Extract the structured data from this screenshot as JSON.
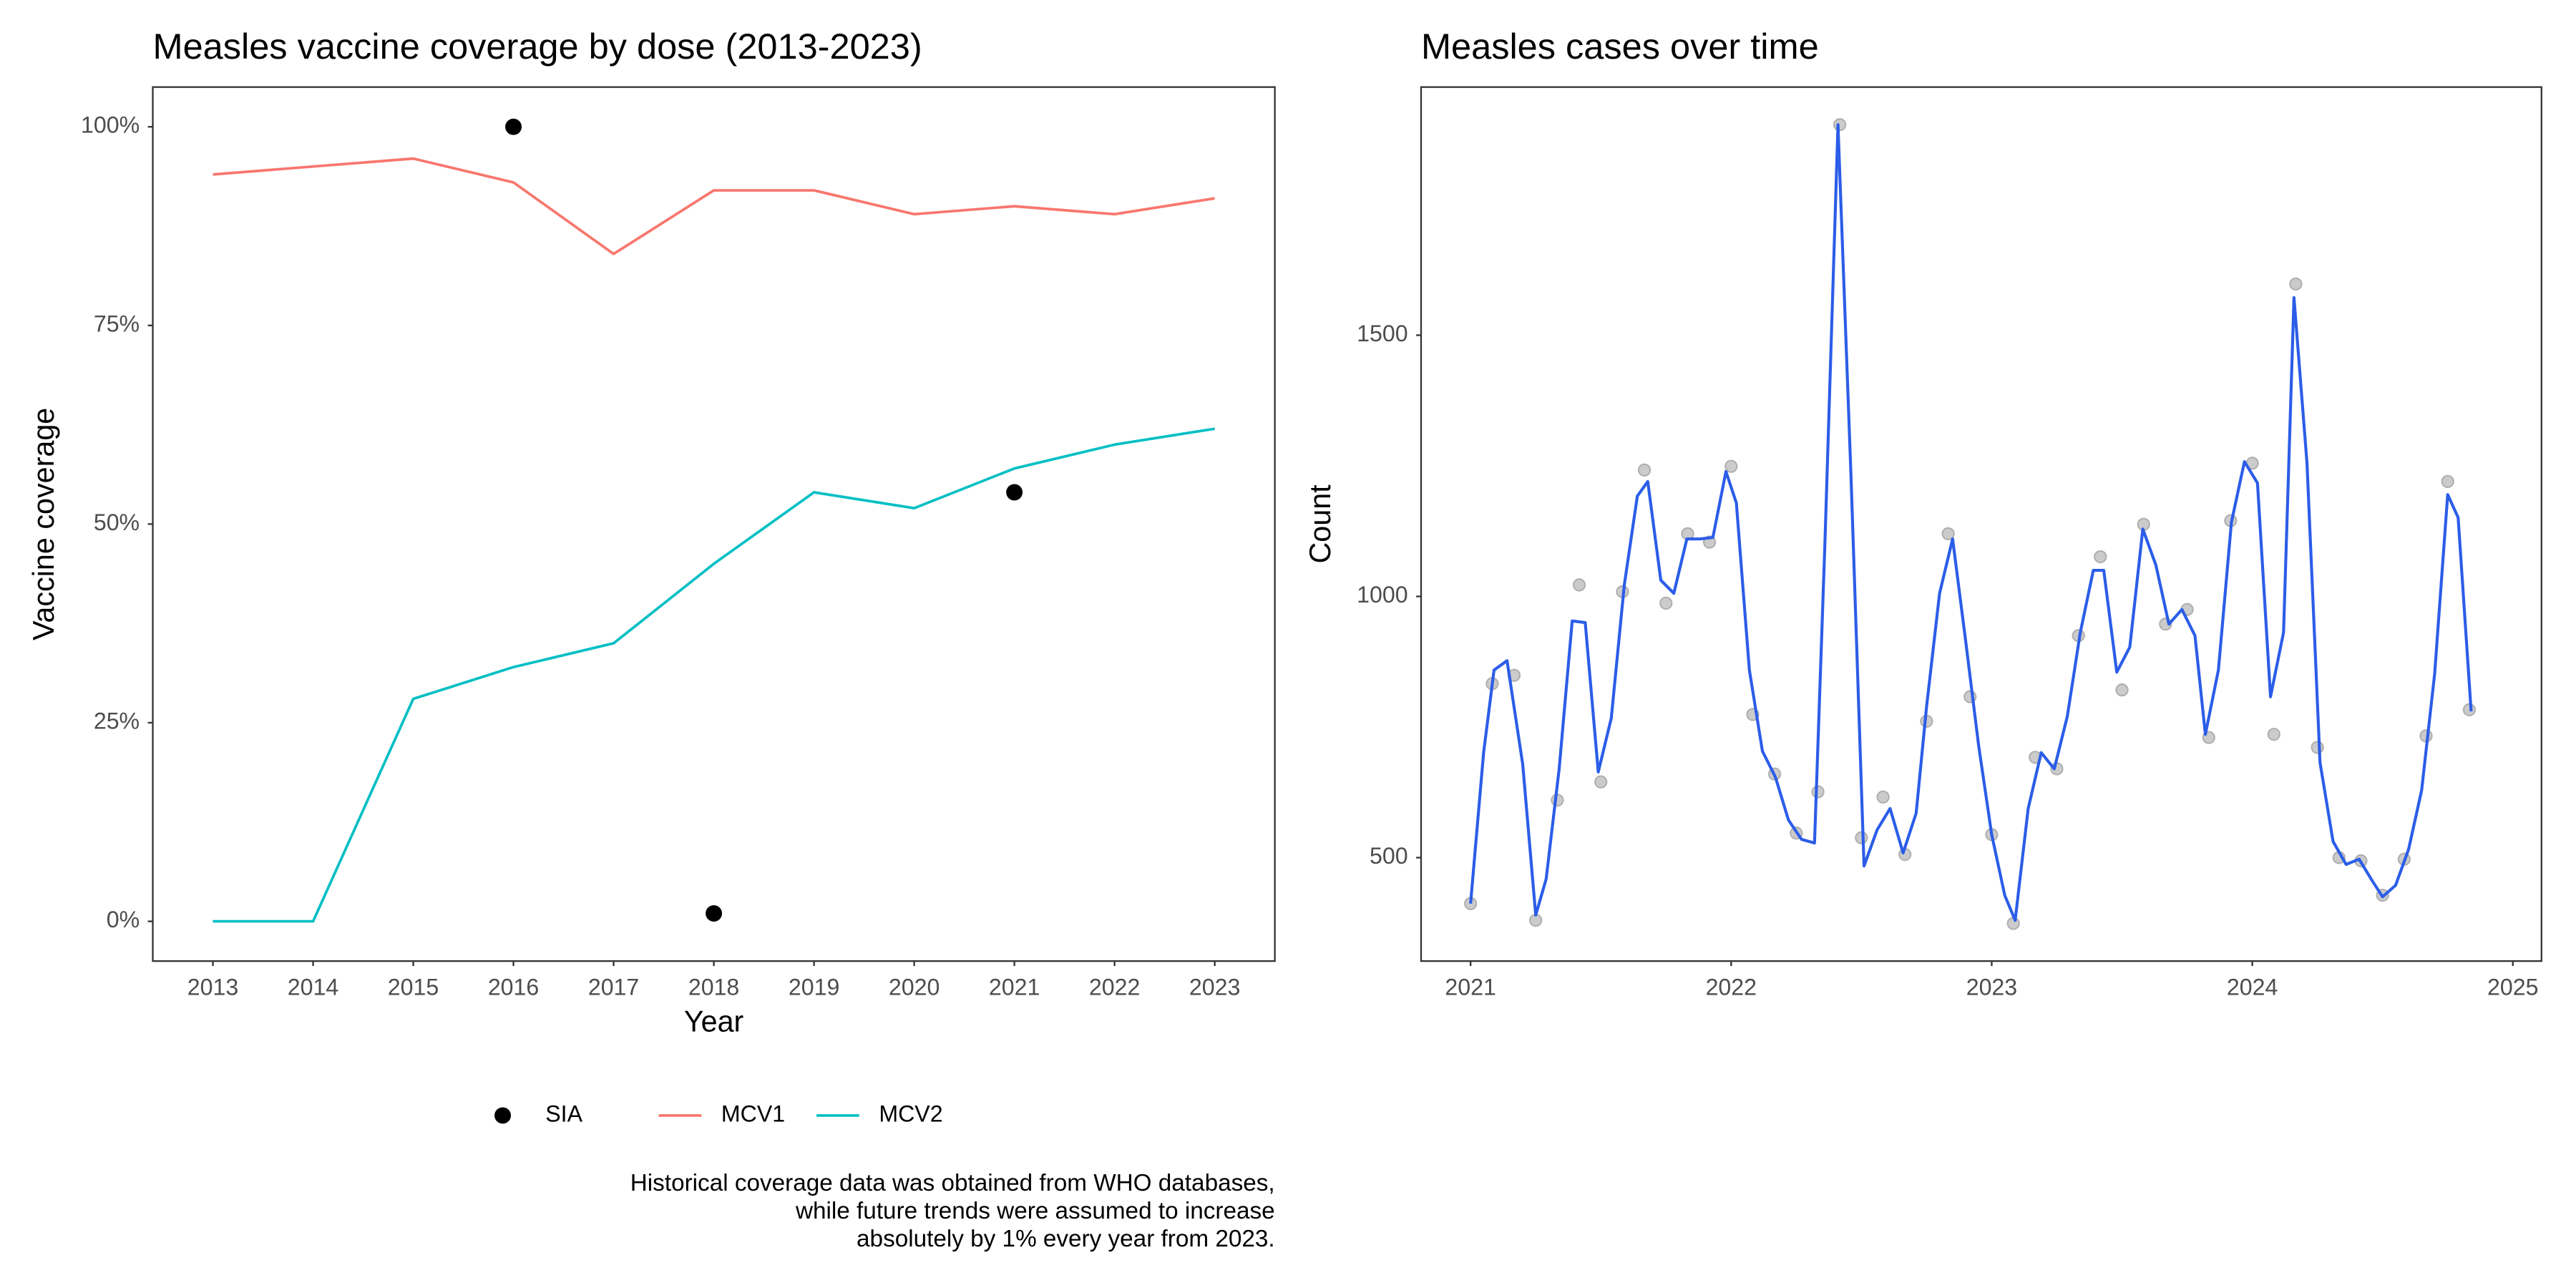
{
  "chart_data": [
    {
      "type": "line",
      "title": "Measles vaccine coverage by dose (2013-2023)",
      "x_label": "Year",
      "y_label": "Vaccine coverage",
      "x": [
        2013,
        2014,
        2015,
        2016,
        2017,
        2018,
        2019,
        2020,
        2021,
        2022,
        2023
      ],
      "xlim": [
        2012.4,
        2023.6
      ],
      "xticks": [
        2013,
        2014,
        2015,
        2016,
        2017,
        2018,
        2019,
        2020,
        2021,
        2022,
        2023
      ],
      "ylim": [
        -5,
        105
      ],
      "yticks": [
        {
          "value": 0,
          "label": "0%"
        },
        {
          "value": 25,
          "label": "25%"
        },
        {
          "value": 50,
          "label": "50%"
        },
        {
          "value": 75,
          "label": "75%"
        },
        {
          "value": 100,
          "label": "100%"
        }
      ],
      "grid": false,
      "legend": "bottom",
      "series": [
        {
          "name": "SIA",
          "style": "points",
          "color": "#000000",
          "values": [
            null,
            null,
            null,
            100,
            null,
            1,
            null,
            null,
            54,
            null,
            null
          ]
        },
        {
          "name": "MCV1",
          "style": "line",
          "color": "#F8766D",
          "values": [
            94,
            95,
            96,
            93,
            84,
            92,
            92,
            89,
            90,
            89,
            91
          ]
        },
        {
          "name": "MCV2",
          "style": "line",
          "color": "#00BFC4",
          "values": [
            0,
            0,
            28,
            32,
            35,
            45,
            54,
            52,
            57,
            60,
            62
          ]
        }
      ],
      "caption": [
        "Historical coverage data was obtained from WHO databases,",
        "while future trends were assumed to increase",
        "absolutely by 1% every year from 2023."
      ]
    },
    {
      "type": "line",
      "title": "Measles cases over time",
      "y_label": "Count",
      "xlim": [
        2020.81,
        2025.11
      ],
      "xticks": [
        2021,
        2022,
        2023,
        2024,
        2025
      ],
      "ylim": [
        302,
        1975
      ],
      "yticks": [
        500,
        1000,
        1500
      ],
      "grid": false,
      "series": [
        {
          "style": "points",
          "color": "#a0a0a0",
          "x": [
            2021.0,
            2021.083,
            2021.167,
            2021.25,
            2021.333,
            2021.417,
            2021.5,
            2021.583,
            2021.667,
            2021.75,
            2021.833,
            2021.917,
            2022.0,
            2022.083,
            2022.167,
            2022.25,
            2022.333,
            2022.417,
            2022.5,
            2022.583,
            2022.667,
            2022.75,
            2022.833,
            2022.917,
            2023.0,
            2023.083,
            2023.167,
            2023.25,
            2023.333,
            2023.417,
            2023.5,
            2023.583,
            2023.667,
            2023.75,
            2023.833,
            2023.917,
            2024.0,
            2024.083,
            2024.167,
            2024.25,
            2024.333,
            2024.417,
            2024.5,
            2024.583,
            2024.667,
            2024.75,
            2024.833
          ],
          "values": [
            412,
            833,
            849,
            380,
            610,
            1022,
            645,
            1009,
            1242,
            987,
            1120,
            1104,
            1249,
            774,
            660,
            547,
            626,
            1903,
            538,
            616,
            506,
            761,
            1120,
            808,
            544,
            374,
            692,
            670,
            925,
            1076,
            821,
            1138,
            947,
            975,
            730,
            1145,
            1255,
            736,
            1598,
            711,
            500,
            494,
            428,
            497,
            733,
            1220,
            783
          ]
        },
        {
          "style": "line",
          "color": "#2b5de8",
          "x": [
            2021.0,
            2021.05,
            2021.09,
            2021.14,
            2021.2,
            2021.25,
            2021.29,
            2021.34,
            2021.39,
            2021.44,
            2021.49,
            2021.54,
            2021.59,
            2021.64,
            2021.68,
            2021.73,
            2021.78,
            2021.83,
            2021.88,
            2021.93,
            2021.98,
            2022.02,
            2022.07,
            2022.12,
            2022.17,
            2022.22,
            2022.27,
            2022.32,
            2022.36,
            2022.41,
            2022.46,
            2022.51,
            2022.56,
            2022.61,
            2022.66,
            2022.71,
            2022.75,
            2022.8,
            2022.85,
            2022.9,
            2022.95,
            2023.0,
            2023.05,
            2023.09,
            2023.14,
            2023.19,
            2023.24,
            2023.29,
            2023.34,
            2023.39,
            2023.43,
            2023.48,
            2023.53,
            2023.58,
            2023.63,
            2023.68,
            2023.73,
            2023.78,
            2023.82,
            2023.87,
            2023.92,
            2023.97,
            2024.02,
            2024.07,
            2024.12,
            2024.16,
            2024.21,
            2024.26,
            2024.31,
            2024.36,
            2024.41,
            2024.46,
            2024.5,
            2024.55,
            2024.6,
            2024.65,
            2024.7,
            2024.75,
            2024.79,
            2024.84
          ],
          "values": [
            412,
            701,
            859,
            877,
            679,
            390,
            459,
            670,
            953,
            950,
            664,
            767,
            1022,
            1192,
            1220,
            1031,
            1006,
            1110,
            1110,
            1113,
            1239,
            1179,
            859,
            704,
            654,
            572,
            535,
            528,
            1104,
            1903,
            1230,
            484,
            553,
            594,
            509,
            585,
            789,
            1006,
            1110,
            915,
            714,
            544,
            428,
            380,
            594,
            701,
            670,
            770,
            931,
            1050,
            1050,
            855,
            903,
            1129,
            1060,
            947,
            975,
            925,
            736,
            859,
            1142,
            1258,
            1217,
            808,
            931,
            1572,
            1255,
            682,
            531,
            487,
            497,
            456,
            425,
            447,
            516,
            629,
            852,
            1195,
            1151,
            780
          ]
        }
      ]
    }
  ]
}
